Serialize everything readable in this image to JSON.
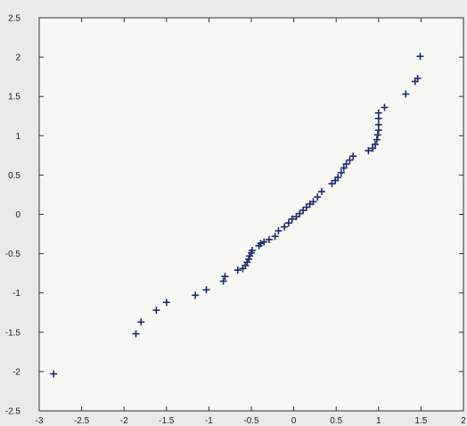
{
  "chart_data": {
    "type": "scatter",
    "title": "",
    "xlabel": "",
    "ylabel": "",
    "xlim": [
      -3,
      2
    ],
    "ylim": [
      -2.5,
      2.5
    ],
    "grid": false,
    "marker": "plus",
    "marker_color": "#1d2a6b",
    "x_ticks": [
      "-3",
      "-2.5",
      "-2",
      "-1.5",
      "-1",
      "-0.5",
      "0",
      "0.5",
      "1",
      "1.5",
      "2"
    ],
    "y_ticks": [
      "2.5",
      "2",
      "1.5",
      "1",
      "0.5",
      "0",
      "-0.5",
      "-1",
      "-1.5",
      "-2",
      "-2.5"
    ],
    "series": [
      {
        "points": [
          [
            -2.83,
            -2.03
          ],
          [
            -1.86,
            -1.52
          ],
          [
            -1.8,
            -1.37
          ],
          [
            -1.62,
            -1.22
          ],
          [
            -1.5,
            -1.12
          ],
          [
            -1.16,
            -1.03
          ],
          [
            -1.03,
            -0.96
          ],
          [
            -0.83,
            -0.85
          ],
          [
            -0.81,
            -0.79
          ],
          [
            -0.66,
            -0.71
          ],
          [
            -0.6,
            -0.69
          ],
          [
            -0.57,
            -0.65
          ],
          [
            -0.55,
            -0.61
          ],
          [
            -0.53,
            -0.57
          ],
          [
            -0.52,
            -0.53
          ],
          [
            -0.5,
            -0.49
          ],
          [
            -0.49,
            -0.46
          ],
          [
            -0.41,
            -0.4
          ],
          [
            -0.39,
            -0.37
          ],
          [
            -0.35,
            -0.35
          ],
          [
            -0.29,
            -0.32
          ],
          [
            -0.22,
            -0.28
          ],
          [
            -0.18,
            -0.21
          ],
          [
            -0.11,
            -0.16
          ],
          [
            -0.06,
            -0.11
          ],
          [
            -0.02,
            -0.06
          ],
          [
            0.03,
            -0.03
          ],
          [
            0.07,
            0.01
          ],
          [
            0.11,
            0.05
          ],
          [
            0.15,
            0.09
          ],
          [
            0.19,
            0.13
          ],
          [
            0.23,
            0.16
          ],
          [
            0.28,
            0.22
          ],
          [
            0.33,
            0.29
          ],
          [
            0.45,
            0.39
          ],
          [
            0.49,
            0.43
          ],
          [
            0.52,
            0.47
          ],
          [
            0.56,
            0.53
          ],
          [
            0.59,
            0.59
          ],
          [
            0.62,
            0.64
          ],
          [
            0.66,
            0.69
          ],
          [
            0.7,
            0.74
          ],
          [
            0.88,
            0.81
          ],
          [
            0.93,
            0.84
          ],
          [
            0.96,
            0.89
          ],
          [
            0.98,
            0.95
          ],
          [
            0.99,
            1.01
          ],
          [
            1.0,
            1.07
          ],
          [
            1.0,
            1.14
          ],
          [
            1.0,
            1.22
          ],
          [
            1.0,
            1.29
          ],
          [
            1.07,
            1.36
          ],
          [
            1.32,
            1.53
          ],
          [
            1.43,
            1.69
          ],
          [
            1.46,
            1.73
          ],
          [
            1.49,
            2.01
          ]
        ]
      }
    ]
  }
}
